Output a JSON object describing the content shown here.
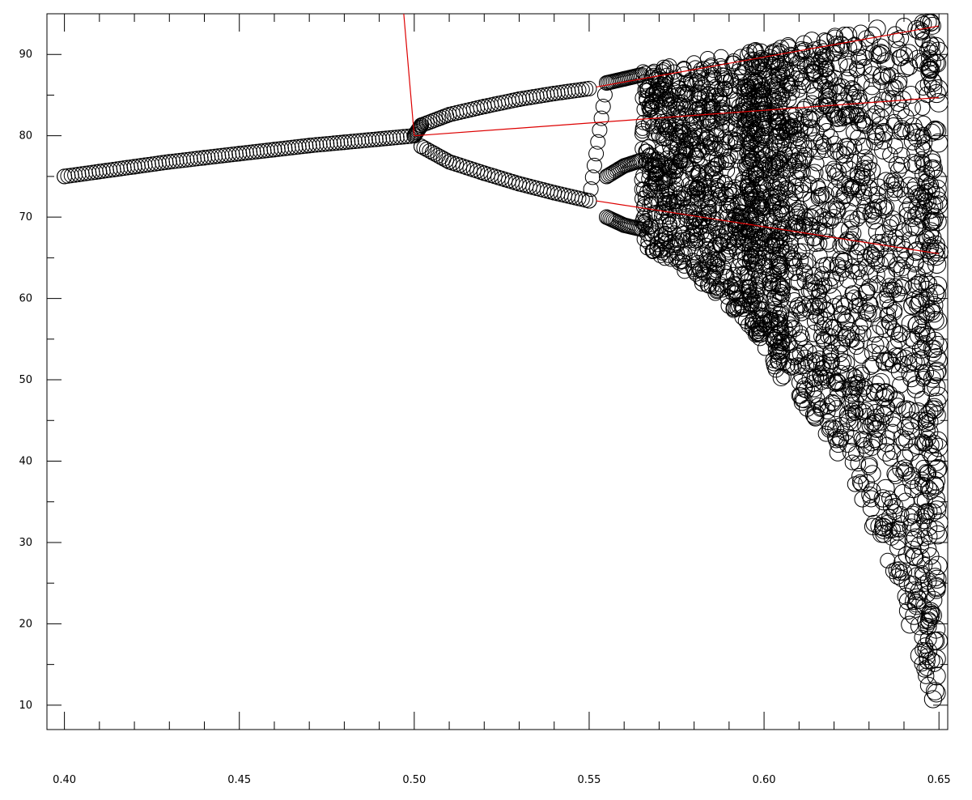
{
  "chart_data": {
    "type": "scatter",
    "title": "",
    "xlabel": "",
    "ylabel": "",
    "xlim": [
      0.395,
      0.6525
    ],
    "ylim": [
      7,
      95
    ],
    "grid": false,
    "legend": "none",
    "x_ticks": [
      0.4,
      0.45,
      0.5,
      0.55,
      0.6,
      0.65
    ],
    "x_tick_labels": [
      "0.40",
      "0.45",
      "0.50",
      "0.55",
      "0.60",
      "0.65"
    ],
    "y_ticks": [
      10,
      20,
      30,
      40,
      50,
      60,
      70,
      80,
      90
    ],
    "y_tick_labels": [
      "10",
      "20",
      "30",
      "40",
      "50",
      "60",
      "70",
      "80",
      "90"
    ],
    "marker": "open-circle",
    "marker_color": "#000000",
    "series": [
      {
        "kind": "points",
        "points": [
          [
            0.4,
            75.0
          ],
          [
            0.41,
            75.6
          ],
          [
            0.42,
            76.2
          ],
          [
            0.43,
            76.8
          ],
          [
            0.44,
            77.3
          ],
          [
            0.45,
            77.8
          ],
          [
            0.46,
            78.3
          ],
          [
            0.47,
            78.8
          ],
          [
            0.48,
            79.2
          ],
          [
            0.49,
            79.6
          ],
          [
            0.5,
            80.0
          ],
          [
            0.502,
            81.3
          ],
          [
            0.51,
            82.6
          ],
          [
            0.52,
            83.6
          ],
          [
            0.53,
            84.5
          ],
          [
            0.54,
            85.2
          ],
          [
            0.55,
            85.8
          ],
          [
            0.502,
            78.7
          ],
          [
            0.51,
            76.8
          ],
          [
            0.52,
            75.4
          ],
          [
            0.53,
            74.1
          ],
          [
            0.54,
            73.0
          ],
          [
            0.55,
            72.0
          ],
          [
            0.555,
            86.5
          ],
          [
            0.56,
            87.0
          ],
          [
            0.565,
            87.5
          ],
          [
            0.555,
            75.0
          ],
          [
            0.56,
            76.3
          ],
          [
            0.565,
            77.0
          ],
          [
            0.555,
            70.0
          ],
          [
            0.56,
            69.0
          ],
          [
            0.565,
            68.5
          ]
        ]
      },
      {
        "kind": "chaotic-bands",
        "bands": [
          [
            0.565,
            66.5,
            88.0
          ],
          [
            0.575,
            64.0,
            88.8
          ],
          [
            0.585,
            61.0,
            89.6
          ],
          [
            0.595,
            57.0,
            90.4
          ],
          [
            0.6,
            54.0,
            90.8
          ],
          [
            0.605,
            50.0,
            91.2
          ],
          [
            0.615,
            45.0,
            92.0
          ],
          [
            0.625,
            38.0,
            92.7
          ],
          [
            0.635,
            28.0,
            93.4
          ],
          [
            0.645,
            15.0,
            94.0
          ],
          [
            0.65,
            8.0,
            94.2
          ]
        ],
        "window_gap": [
          0.6005,
          0.6015
        ]
      }
    ],
    "annotations": [
      {
        "kind": "line",
        "color": "#dd0000",
        "points": [
          [
            0.497,
            95.0
          ],
          [
            0.5,
            80.0
          ]
        ]
      },
      {
        "kind": "line",
        "color": "#dd0000",
        "points": [
          [
            0.5,
            80.0
          ],
          [
            0.65,
            84.7
          ]
        ]
      },
      {
        "kind": "line",
        "color": "#dd0000",
        "points": [
          [
            0.552,
            72.0
          ],
          [
            0.65,
            65.5
          ]
        ]
      },
      {
        "kind": "line",
        "color": "#dd0000",
        "points": [
          [
            0.552,
            86.0
          ],
          [
            0.65,
            93.5
          ]
        ]
      }
    ]
  }
}
